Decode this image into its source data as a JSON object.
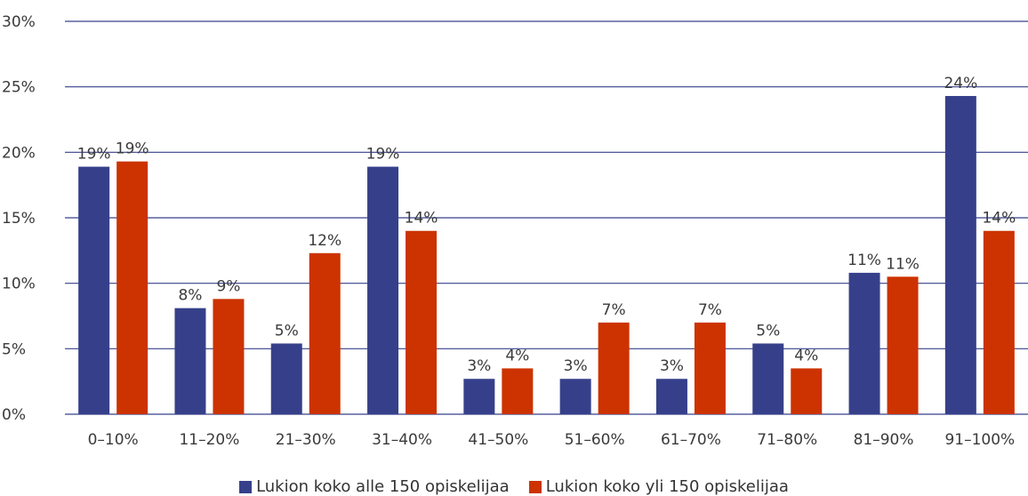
{
  "chart_data": {
    "type": "bar",
    "categories": [
      "0–10%",
      "11–20%",
      "21–30%",
      "31–40%",
      "41–50%",
      "51–60%",
      "61–70%",
      "71–80%",
      "81–90%",
      "91–100%"
    ],
    "series": [
      {
        "name": "Lukion koko alle 150 opiskelijaa",
        "color": "#36408a",
        "values": [
          19,
          8,
          5,
          19,
          3,
          3,
          3,
          5,
          11,
          24
        ],
        "value_precise": [
          18.9,
          8.1,
          5.4,
          18.9,
          2.7,
          2.7,
          2.7,
          5.4,
          10.8,
          24.3
        ],
        "labels": [
          "19%",
          "8%",
          "5%",
          "19%",
          "3%",
          "3%",
          "3%",
          "5%",
          "11%",
          "24%"
        ]
      },
      {
        "name": "Lukion koko yli 150 opiskelijaa",
        "color": "#cc3300",
        "values": [
          19,
          9,
          12,
          14,
          4,
          7,
          7,
          4,
          11,
          14
        ],
        "value_precise": [
          19.3,
          8.8,
          12.3,
          14.0,
          3.5,
          7.0,
          7.0,
          3.5,
          10.5,
          14.0
        ],
        "labels": [
          "19%",
          "9%",
          "12%",
          "14%",
          "4%",
          "7%",
          "7%",
          "4%",
          "11%",
          "14%"
        ]
      }
    ],
    "ylim": [
      0,
      30
    ],
    "yticks": [
      0,
      5,
      10,
      15,
      20,
      25,
      30
    ],
    "ytick_labels": [
      "0%",
      "5%",
      "10%",
      "15%",
      "20%",
      "25%",
      "30%"
    ],
    "grid": true,
    "legend_position": "bottom"
  },
  "colors": {
    "grid": "#36408a",
    "axis": "#36408a"
  }
}
